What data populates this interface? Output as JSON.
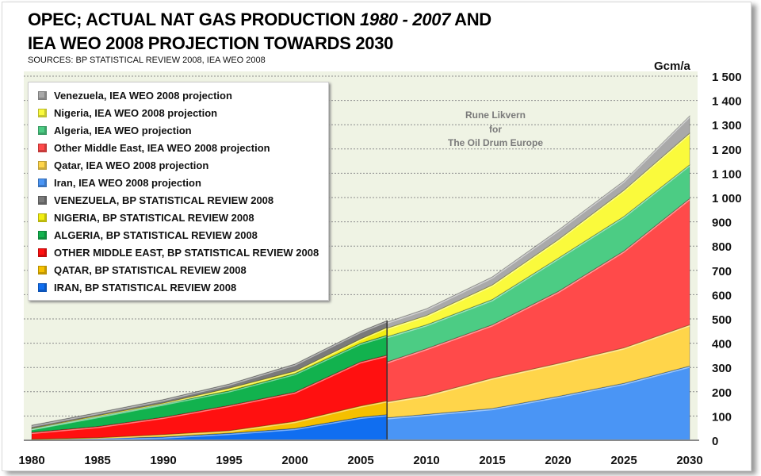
{
  "title": {
    "line1_a": "OPEC; ACTUAL NAT GAS PRODUCTION ",
    "line1_b": "1980 - 2007",
    "line1_c": " AND",
    "line2": "IEA WEO 2008 PROJECTION TOWARDS 2030",
    "subtitle": "SOURCES: BP STATISTICAL REVIEW 2008, IEA WEO 2008"
  },
  "watermark": [
    "Rune Likvern",
    "for",
    "The Oil Drum Europe"
  ],
  "chart_data": {
    "type": "area",
    "stacked": true,
    "ylabel": "Gcm/a",
    "ylim": [
      0,
      1500
    ],
    "xlim": [
      1980,
      2030
    ],
    "yticks": [
      "0",
      "100",
      "200",
      "300",
      "400",
      "500",
      "600",
      "700",
      "800",
      "900",
      "1 000",
      "1 100",
      "1 200",
      "1 300",
      "1 400",
      "1 500"
    ],
    "xticks": [
      "1980",
      "1985",
      "1990",
      "1995",
      "2000",
      "2005",
      "2010",
      "2015",
      "2020",
      "2025",
      "2030"
    ],
    "grid": "horizontal dotted",
    "legend_position": "top-left",
    "legend": [
      {
        "label": "Venezuela, IEA WEO 2008 projection",
        "color": "#a9a9a9"
      },
      {
        "label": "Nigeria, IEA WEO 2008 projection",
        "color": "#fafa3c"
      },
      {
        "label": "Algeria, IEA WEO projection",
        "color": "#4ccc84"
      },
      {
        "label": "Other Middle East, IEA WEO 2008 projection",
        "color": "#ff4a4a"
      },
      {
        "label": "Qatar, IEA WEO 2008 projection",
        "color": "#ffd54a"
      },
      {
        "label": " Iran, IEA WEO 2008 projection",
        "color": "#4a95f5"
      },
      {
        "label": "VENEZUELA, BP STATISTICAL REVIEW 2008",
        "color": "#7a7a7a"
      },
      {
        "label": "NIGERIA, BP STATISTICAL REVIEW 2008",
        "color": "#f2ee10"
      },
      {
        "label": "ALGERIA, BP STATISTICAL REVIEW 2008",
        "color": "#12b24e"
      },
      {
        "label": "OTHER MIDDLE EAST, BP STATISTICAL REVIEW 2008",
        "color": "#ff1010"
      },
      {
        "label": "QATAR, BP STATISTICAL REVIEW 2008",
        "color": "#f5c000"
      },
      {
        "label": "IRAN, BP STATISTICAL REVIEW 2008",
        "color": "#106ef0"
      }
    ],
    "historical": {
      "x": [
        1980,
        1985,
        1990,
        1995,
        2000,
        2005,
        2007
      ],
      "series": [
        {
          "name": "IRAN, BP STATISTICAL REVIEW 2008",
          "color": "#106ef0",
          "values": [
            2,
            7,
            14,
            29,
            49,
            95,
            106
          ]
        },
        {
          "name": "QATAR, BP STATISTICAL REVIEW 2008",
          "color": "#f5c000",
          "values": [
            3,
            4,
            10,
            11,
            29,
            47,
            57
          ]
        },
        {
          "name": "OTHER MIDDLE EAST, BP STATISTICAL REVIEW 2008",
          "color": "#ff1010",
          "values": [
            28,
            46,
            71,
            104,
            121,
            182,
            188
          ]
        },
        {
          "name": "ALGERIA, BP STATISTICAL REVIEW 2008",
          "color": "#12b24e",
          "values": [
            15,
            41,
            55,
            60,
            76,
            76,
            82
          ]
        },
        {
          "name": "NIGERIA, BP STATISTICAL REVIEW 2008",
          "color": "#f2ee10",
          "values": [
            2,
            4,
            4,
            11,
            10,
            18,
            32
          ]
        },
        {
          "name": "VENEZUELA, BP STATISTICAL REVIEW 2008",
          "color": "#7a7a7a",
          "values": [
            12,
            12,
            14,
            17,
            29,
            31,
            28
          ]
        }
      ]
    },
    "projection": {
      "x": [
        2007,
        2010,
        2015,
        2020,
        2025,
        2030
      ],
      "series": [
        {
          "name": " Iran, IEA WEO 2008 projection",
          "color": "#4a95f5",
          "values": [
            93,
            107,
            131,
            181,
            235,
            306
          ]
        },
        {
          "name": "Qatar, IEA WEO 2008 projection",
          "color": "#ffd54a",
          "values": [
            66,
            79,
            126,
            136,
            146,
            170
          ]
        },
        {
          "name": "Other Middle East, IEA WEO 2008 projection",
          "color": "#ff4a4a",
          "values": [
            164,
            192,
            219,
            296,
            399,
            520
          ]
        },
        {
          "name": "Algeria, IEA WEO projection",
          "color": "#4ccc84",
          "values": [
            104,
            98,
            104,
            137,
            142,
            139
          ]
        },
        {
          "name": "Nigeria, IEA WEO 2008 projection",
          "color": "#fafa3c",
          "values": [
            35,
            38,
            60,
            76,
            108,
            130
          ]
        },
        {
          "name": "Venezuela, IEA WEO 2008 projection",
          "color": "#a9a9a9",
          "values": [
            25,
            28,
            33,
            39,
            38,
            71
          ]
        }
      ]
    }
  }
}
